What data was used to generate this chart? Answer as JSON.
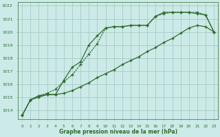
{
  "title": "Graphe pression niveau de la mer (hPa)",
  "bg_color": "#cceae7",
  "grid_color": "#aacfcc",
  "line_color": "#2d6b2d",
  "xlim": [
    -0.5,
    23.5
  ],
  "ylim": [
    1013.3,
    1022.3
  ],
  "xticks": [
    0,
    1,
    2,
    3,
    4,
    5,
    6,
    7,
    8,
    9,
    10,
    11,
    12,
    13,
    14,
    15,
    16,
    17,
    18,
    19,
    20,
    21,
    22,
    23
  ],
  "yticks": [
    1014,
    1015,
    1016,
    1017,
    1018,
    1019,
    1020,
    1021,
    1022
  ],
  "series1_x": [
    0,
    1,
    2,
    3,
    4,
    5,
    6,
    7,
    8,
    9,
    10,
    11,
    12,
    13,
    14,
    15,
    16,
    17,
    18,
    19,
    20,
    21,
    22,
    23
  ],
  "series1_y": [
    1013.6,
    1014.8,
    1015.1,
    1015.2,
    1015.2,
    1016.3,
    1017.3,
    1017.7,
    1019.0,
    1019.7,
    1020.3,
    1020.4,
    1020.4,
    1020.5,
    1020.5,
    1020.5,
    1021.2,
    1021.5,
    1021.5,
    1021.5,
    1021.5,
    1021.4,
    1021.3,
    1020.0
  ],
  "series2_x": [
    0,
    1,
    2,
    3,
    4,
    5,
    6,
    7,
    8,
    9,
    10,
    11,
    12,
    13,
    14,
    15,
    16,
    17,
    18,
    19,
    20,
    21,
    22,
    23
  ],
  "series2_y": [
    1013.6,
    1014.8,
    1015.1,
    1015.3,
    1015.6,
    1016.2,
    1016.7,
    1017.5,
    1018.3,
    1019.1,
    1020.3,
    1020.4,
    1020.4,
    1020.5,
    1020.5,
    1020.5,
    1021.2,
    1021.4,
    1021.5,
    1021.5,
    1021.5,
    1021.5,
    1021.3,
    1020.0
  ],
  "series3_x": [
    0,
    1,
    2,
    3,
    4,
    5,
    6,
    7,
    8,
    9,
    10,
    11,
    12,
    13,
    14,
    15,
    16,
    17,
    18,
    19,
    20,
    21,
    22,
    23
  ],
  "series3_y": [
    1013.6,
    1014.8,
    1015.0,
    1015.2,
    1015.2,
    1015.3,
    1015.5,
    1015.8,
    1016.1,
    1016.5,
    1016.8,
    1017.1,
    1017.5,
    1017.8,
    1018.1,
    1018.5,
    1018.8,
    1019.2,
    1019.5,
    1019.9,
    1020.3,
    1020.5,
    1020.4,
    1020.0
  ]
}
